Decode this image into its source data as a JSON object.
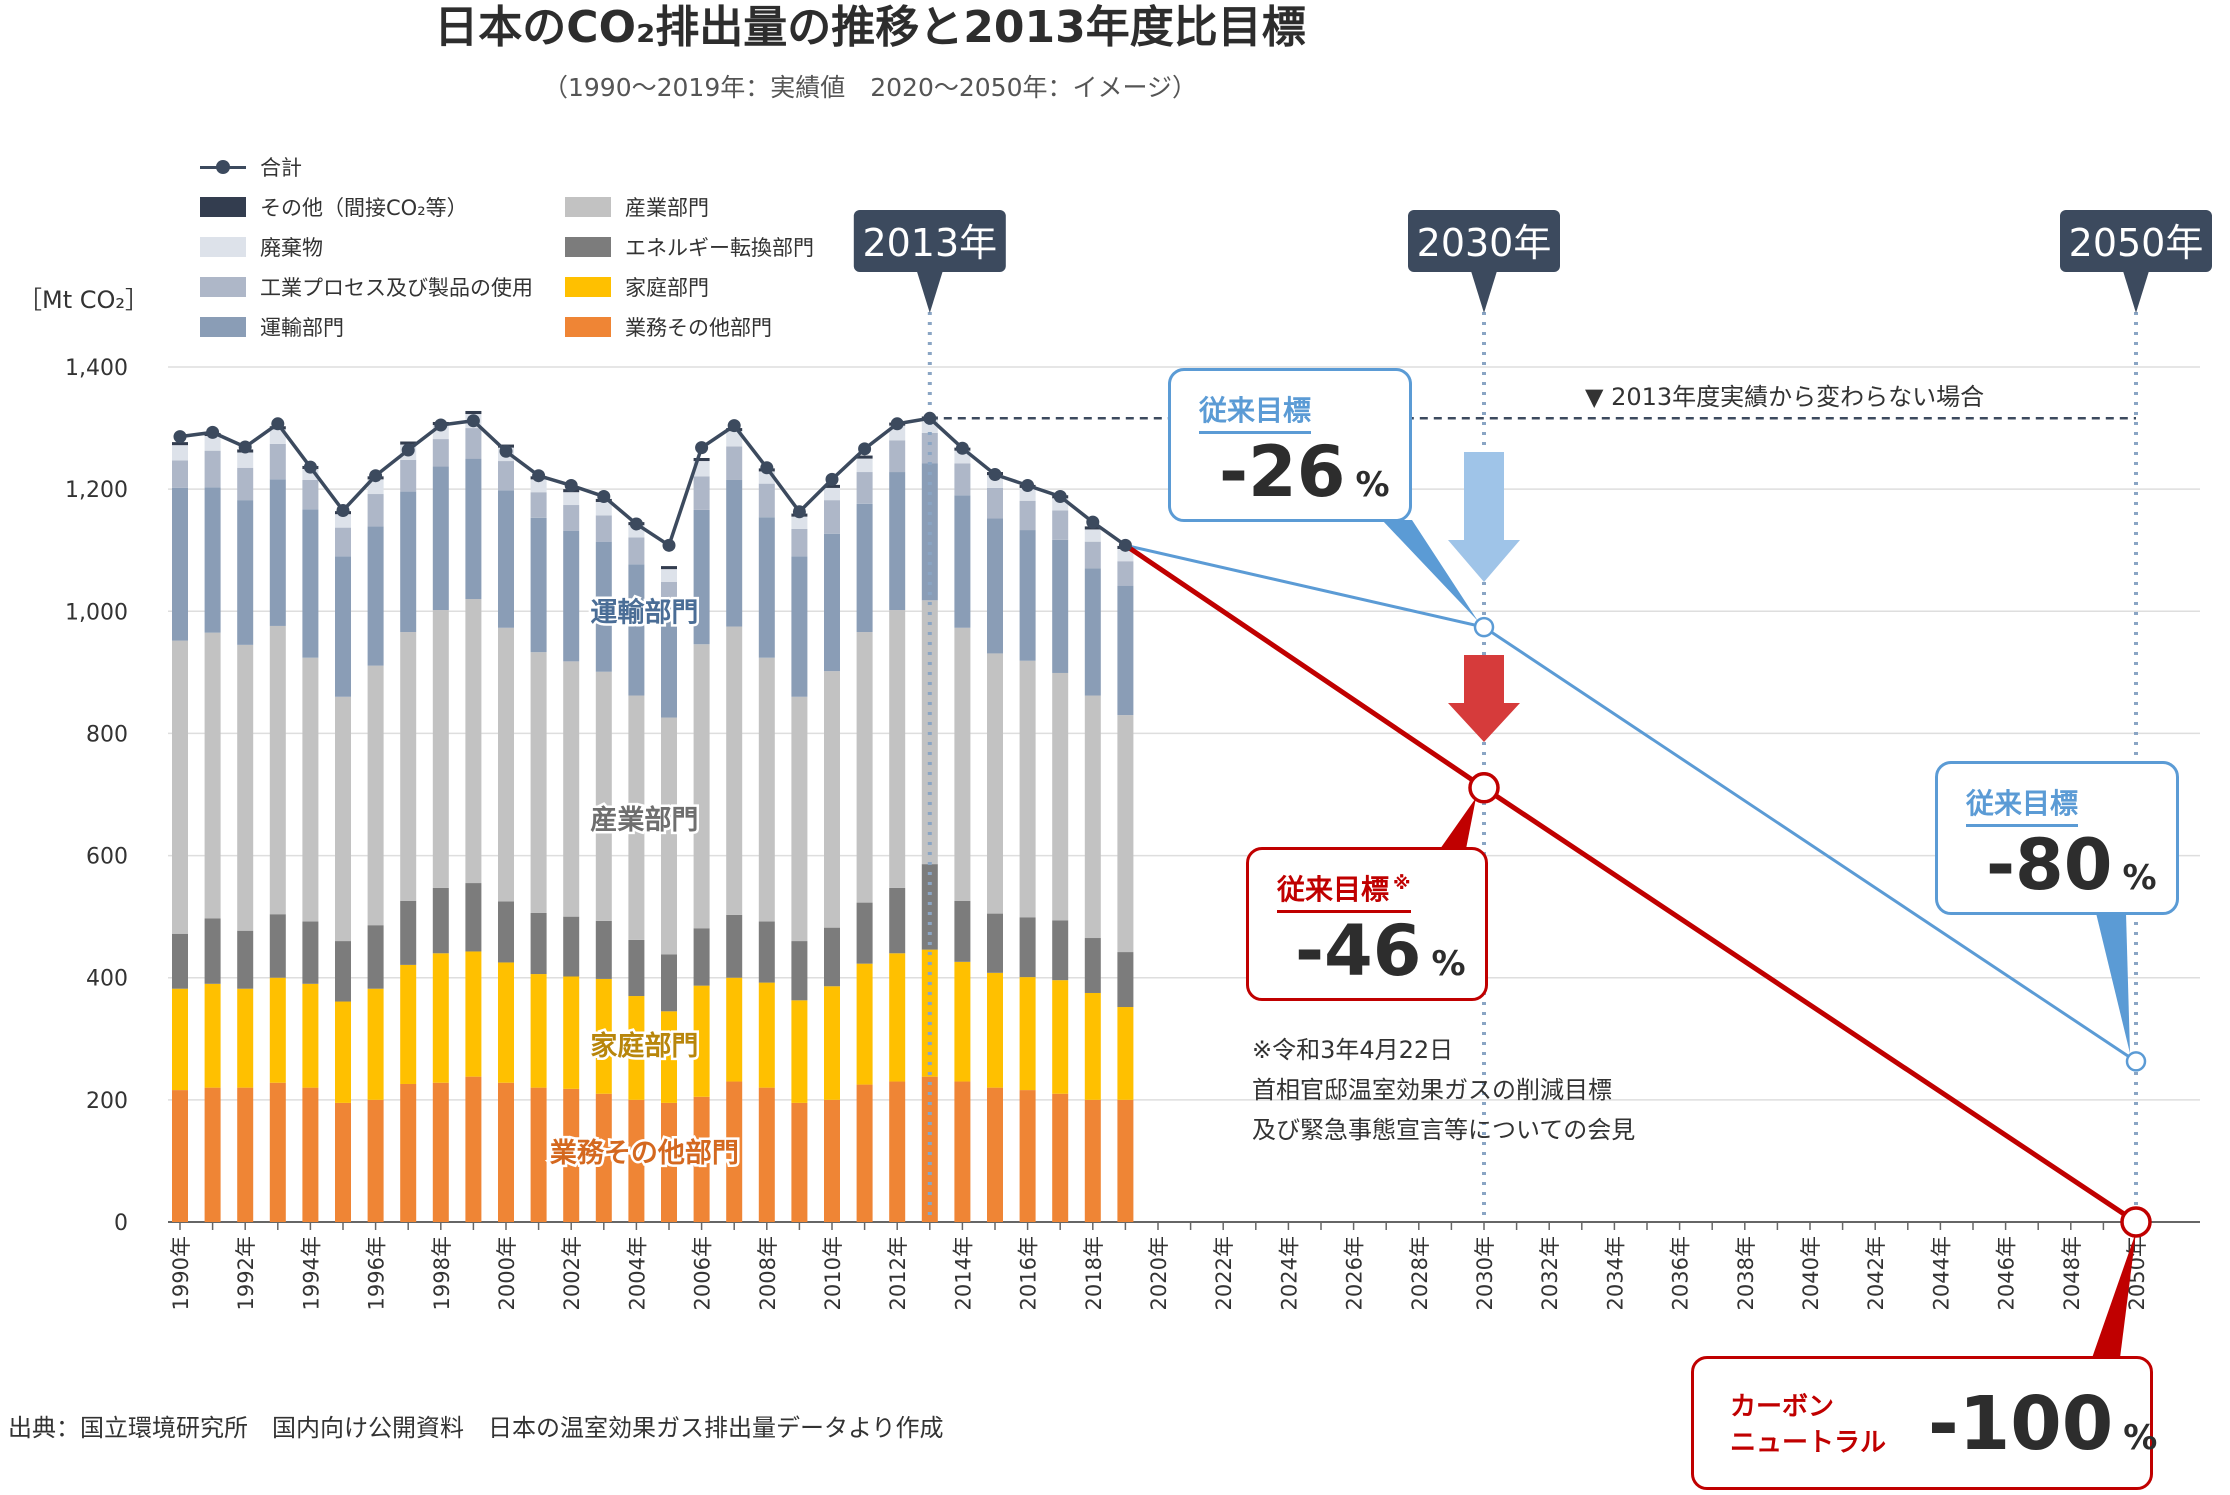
{
  "title": "日本のCO₂排出量の推移と2013年度比目標",
  "subtitle": "（1990〜2019年：実績値　2020〜2050年：イメージ）",
  "source": "出典：国立環境研究所　国内向け公開資料　日本の温室効果ガス排出量データより作成",
  "legend": {
    "total": "合計",
    "other": "その他（間接CO₂等）",
    "waste": "廃棄物",
    "process": "工業プロセス及び製品の使用",
    "transport": "運輸部門",
    "industry": "産業部門",
    "energy": "エネルギー転換部門",
    "household": "家庭部門",
    "business": "業務その他部門"
  },
  "colors": {
    "other": "#333d4f",
    "waste": "#dde2ea",
    "process": "#aeb7c8",
    "transport": "#8a9db6",
    "industry": "#c2c2c2",
    "energy": "#7c7c7c",
    "household": "#ffc000",
    "business": "#ef8535",
    "total_line": "#3c4a5e",
    "target_old": "#5b9bd5",
    "target_new": "#c00000"
  },
  "chart_data": {
    "type": "bar",
    "y_unit": "［Mt CO₂］",
    "ylim": [
      0,
      1400
    ],
    "yticks": [
      0,
      200,
      400,
      600,
      800,
      1000,
      1200,
      1400
    ],
    "ytick_labels": [
      "0",
      "200",
      "400",
      "600",
      "800",
      "1,000",
      "1,200",
      "1,400"
    ],
    "grid": true,
    "x": [
      1990,
      1991,
      1992,
      1993,
      1994,
      1995,
      1996,
      1997,
      1998,
      1999,
      2000,
      2001,
      2002,
      2003,
      2004,
      2005,
      2006,
      2007,
      2008,
      2009,
      2010,
      2011,
      2012,
      2013,
      2014,
      2015,
      2016,
      2017,
      2018,
      2019
    ],
    "xtick_labels": [
      "1990年",
      "1992年",
      "1994年",
      "1996年",
      "1998年",
      "2000年",
      "2002年",
      "2004年",
      "2006年",
      "2008年",
      "2010年",
      "2012年",
      "2014年",
      "2016年",
      "2018年",
      "2020年",
      "2022年",
      "2024年",
      "2026年",
      "2028年",
      "2030年",
      "2032年",
      "2034年",
      "2036年",
      "2038年",
      "2040年",
      "2042年",
      "2044年",
      "2046年",
      "2048年",
      "2050年"
    ],
    "series": [
      {
        "name": "業務その他部門",
        "key": "business",
        "values": [
          216,
          220,
          220,
          228,
          220,
          195,
          200,
          226,
          228,
          238,
          228,
          220,
          218,
          210,
          200,
          195,
          205,
          230,
          220,
          195,
          200,
          225,
          230,
          238,
          230,
          220,
          216,
          210,
          200,
          200
        ]
      },
      {
        "name": "家庭部門",
        "key": "household",
        "values": [
          166,
          170,
          162,
          172,
          170,
          166,
          182,
          195,
          212,
          205,
          197,
          186,
          184,
          188,
          170,
          150,
          182,
          170,
          172,
          168,
          186,
          198,
          210,
          208,
          196,
          188,
          185,
          186,
          175,
          152
        ]
      },
      {
        "name": "エネルギー転換部門",
        "key": "energy",
        "values": [
          90,
          107,
          95,
          104,
          102,
          99,
          104,
          105,
          107,
          112,
          100,
          100,
          98,
          95,
          92,
          93,
          94,
          103,
          100,
          97,
          96,
          100,
          107,
          140,
          100,
          97,
          98,
          98,
          90,
          90
        ]
      },
      {
        "name": "産業部門",
        "key": "industry",
        "values": [
          480,
          468,
          468,
          472,
          432,
          400,
          425,
          440,
          455,
          465,
          448,
          427,
          418,
          408,
          400,
          388,
          465,
          472,
          432,
          400,
          420,
          443,
          455,
          432,
          447,
          426,
          420,
          405,
          397,
          388
        ]
      },
      {
        "name": "運輸部門",
        "key": "transport",
        "values": [
          250,
          238,
          237,
          240,
          243,
          230,
          228,
          230,
          235,
          230,
          225,
          220,
          214,
          213,
          215,
          180,
          220,
          240,
          230,
          230,
          225,
          210,
          226,
          224,
          217,
          221,
          214,
          218,
          208,
          212
        ]
      },
      {
        "name": "工業プロセス及び製品の使用",
        "key": "process",
        "values": [
          45,
          60,
          53,
          58,
          48,
          47,
          53,
          52,
          45,
          50,
          48,
          42,
          42,
          43,
          44,
          42,
          55,
          55,
          55,
          45,
          55,
          52,
          52,
          50,
          52,
          50,
          48,
          48,
          44,
          40
        ]
      },
      {
        "name": "廃棄物",
        "key": "waste",
        "values": [
          25,
          24,
          25,
          24,
          18,
          22,
          24,
          25,
          23,
          23,
          22,
          21,
          21,
          22,
          20,
          21,
          25,
          25,
          20,
          20,
          20,
          22,
          24,
          22,
          21,
          21,
          21,
          20,
          20,
          20
        ]
      },
      {
        "name": "その他（間接CO₂等）",
        "key": "other",
        "values": [
          5,
          5,
          5,
          5,
          5,
          5,
          5,
          5,
          5,
          5,
          5,
          5,
          5,
          5,
          5,
          5,
          5,
          5,
          5,
          5,
          5,
          5,
          5,
          5,
          5,
          5,
          5,
          5,
          5,
          5
        ]
      }
    ],
    "total": {
      "name": "合計",
      "values": [
        1286,
        1293,
        1269,
        1307,
        1236,
        1165,
        1222,
        1264,
        1305,
        1312,
        1262,
        1222,
        1206,
        1188,
        1143,
        1108,
        1268,
        1304,
        1235,
        1163,
        1216,
        1266,
        1307,
        1316,
        1267,
        1224,
        1206,
        1188,
        1146,
        1108
      ]
    },
    "sector_labels": {
      "transport": "運輸部門",
      "industry": "産業部門",
      "household": "家庭部門",
      "business": "業務その他部門"
    },
    "year_markers": [
      {
        "label": "2013年",
        "x": 2013
      },
      {
        "label": "2030年",
        "x": 2030
      },
      {
        "label": "2050年",
        "x": 2050
      }
    ],
    "baseline": {
      "label": "▼ 2013年度実績から変わらない場合",
      "value": 1316
    },
    "target_lines": [
      {
        "key": "old",
        "points": [
          [
            2019,
            1108
          ],
          [
            2030,
            974
          ],
          [
            2050,
            263
          ]
        ]
      },
      {
        "key": "new",
        "points": [
          [
            2019,
            1108
          ],
          [
            2030,
            711
          ],
          [
            2050,
            0
          ]
        ]
      }
    ]
  },
  "callouts": {
    "old_2030": {
      "label": "従来目標",
      "value": "-26",
      "unit": "%"
    },
    "new_2030": {
      "label": "従来目標",
      "mark": "※",
      "value": "-46",
      "unit": "%"
    },
    "old_2050": {
      "label": "従来目標",
      "value": "-80",
      "unit": "%"
    },
    "carbon_neutral": {
      "label_line1": "カーボン",
      "label_line2": "ニュートラル",
      "value": "-100",
      "unit": "%"
    }
  },
  "note": {
    "line1": "※令和3年4月22日",
    "line2": "首相官邸温室効果ガスの削減目標",
    "line3": "及び緊急事態宣言等についての会見"
  }
}
